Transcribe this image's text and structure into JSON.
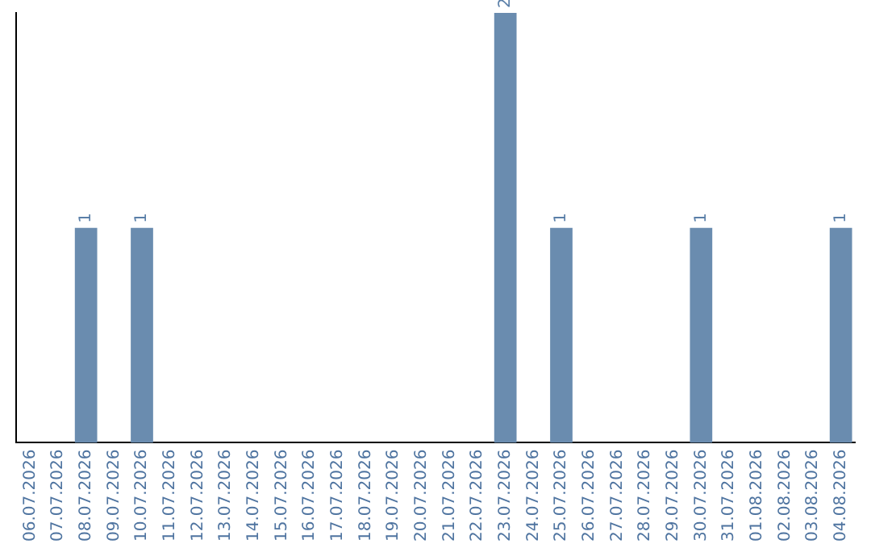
{
  "chart_data": {
    "type": "bar",
    "categories": [
      "06.07.2026",
      "07.07.2026",
      "08.07.2026",
      "09.07.2026",
      "10.07.2026",
      "11.07.2026",
      "12.07.2026",
      "13.07.2026",
      "14.07.2026",
      "15.07.2026",
      "16.07.2026",
      "17.07.2026",
      "18.07.2026",
      "19.07.2026",
      "20.07.2026",
      "21.07.2026",
      "22.07.2026",
      "23.07.2026",
      "24.07.2026",
      "25.07.2026",
      "26.07.2026",
      "27.07.2026",
      "28.07.2026",
      "29.07.2026",
      "30.07.2026",
      "31.07.2026",
      "01.08.2026",
      "02.08.2026",
      "03.08.2026",
      "04.08.2026"
    ],
    "values": [
      0,
      0,
      1,
      0,
      1,
      0,
      0,
      0,
      0,
      0,
      0,
      0,
      0,
      0,
      0,
      0,
      0,
      2,
      0,
      1,
      0,
      0,
      0,
      0,
      1,
      0,
      0,
      0,
      0,
      1
    ],
    "value_labels": [
      null,
      null,
      "1",
      null,
      "1",
      null,
      null,
      null,
      null,
      null,
      null,
      null,
      null,
      null,
      null,
      null,
      null,
      "2",
      null,
      "1",
      null,
      null,
      null,
      null,
      "1",
      null,
      null,
      null,
      null,
      "1"
    ],
    "color": "#6a8caf",
    "ylim": [
      0,
      2
    ],
    "tick_labels": "x",
    "grid": false,
    "legend": false
  }
}
